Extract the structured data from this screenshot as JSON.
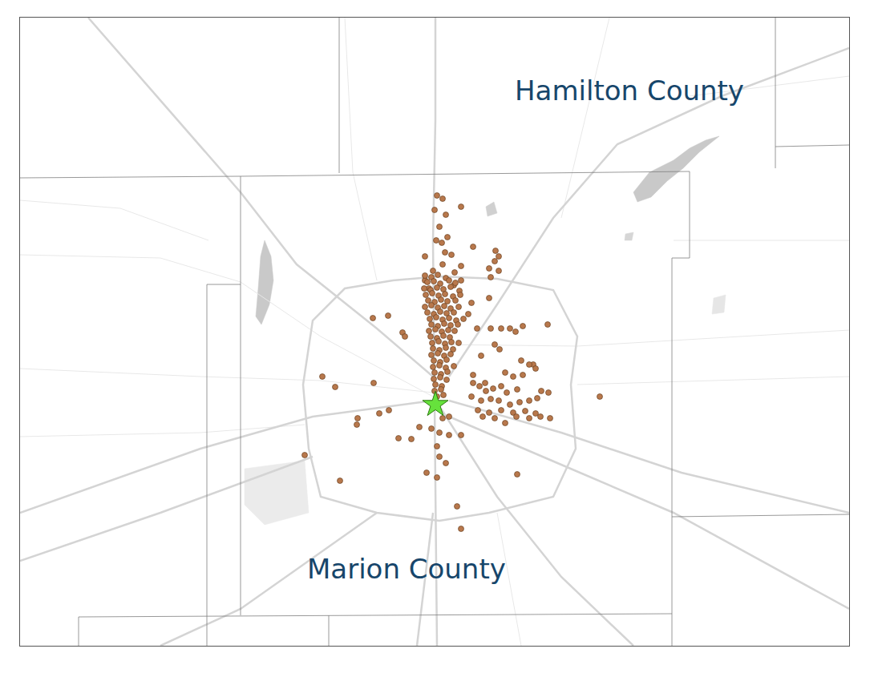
{
  "chart_data": {
    "type": "scatter",
    "xlim": [
      25,
      1059
    ],
    "ylim": [
      806,
      22
    ],
    "grid": false,
    "tick_labels": false,
    "labels": [
      {
        "text": "Hamilton County",
        "x": 785,
        "y": 113
      },
      {
        "text": "Marion County",
        "x": 507,
        "y": 710
      }
    ],
    "series": [
      {
        "color": "#b8784c",
        "marker": "circle",
        "x": [
          545,
          552,
          575,
          542,
          556,
          548,
          558,
          551,
          544,
          590,
          618,
          622,
          617,
          555,
          530,
          563,
          552,
          575,
          540,
          567,
          610,
          622,
          612,
          530,
          575,
          566,
          535,
          573,
          610,
          588,
          584,
          484,
          465,
          502,
          505,
          595,
          612,
          625,
          636,
          652,
          683,
          643,
          617,
          623,
          600,
          650,
          665,
          530,
          538,
          546,
          556,
          533,
          541,
          549,
          560,
          568,
          529,
          537,
          545,
          553,
          562,
          531,
          539,
          547,
          555,
          565,
          574,
          534,
          542,
          550,
          558,
          568,
          530,
          538,
          546,
          554,
          562,
          572,
          533,
          541,
          549,
          557,
          566,
          536,
          544,
          552,
          560,
          569,
          578,
          538,
          546,
          554,
          562,
          571,
          535,
          543,
          551,
          559,
          567,
          537,
          545,
          553,
          561,
          539,
          547,
          555,
          563,
          572,
          540,
          548,
          556,
          565,
          538,
          546,
          554,
          562,
          541,
          549,
          557,
          540,
          548,
          556,
          566,
          542,
          550,
          558,
          541,
          549,
          557,
          543,
          551,
          542,
          550,
          545,
          553,
          590,
          598,
          606,
          615,
          625,
          632,
          645,
          660,
          668,
          652,
          640,
          630,
          675,
          684,
          670,
          660,
          648,
          636,
          622,
          612,
          600,
          588,
          596,
          610,
          625,
          640,
          655,
          668,
          686,
          674,
          660,
          644,
          630,
          617,
          602,
          748,
          590,
          605,
          402,
          418,
          446,
          445,
          473,
          485,
          466,
          497,
          513,
          523,
          538,
          548,
          560,
          575,
          545,
          548,
          556,
          532,
          545,
          380,
          424,
          570,
          575,
          645,
          560,
          552
        ],
        "y": [
          244,
          248,
          258,
          262,
          268,
          283,
          296,
          303,
          300,
          308,
          313,
          320,
          326,
          315,
          320,
          318,
          330,
          332,
          338,
          340,
          335,
          338,
          346,
          350,
          350,
          356,
          360,
          363,
          372,
          378,
          392,
          394,
          397,
          415,
          420,
          410,
          410,
          410,
          410,
          407,
          405,
          414,
          430,
          436,
          444,
          450,
          455,
          344,
          346,
          343,
          347,
          352,
          351,
          354,
          350,
          353,
          360,
          362,
          359,
          361,
          358,
          368,
          366,
          369,
          367,
          370,
          368,
          375,
          377,
          374,
          376,
          375,
          383,
          381,
          384,
          382,
          385,
          383,
          390,
          392,
          389,
          391,
          390,
          398,
          396,
          399,
          397,
          400,
          398,
          405,
          407,
          404,
          406,
          405,
          413,
          411,
          414,
          412,
          413,
          420,
          422,
          419,
          421,
          428,
          426,
          429,
          427,
          428,
          435,
          437,
          434,
          436,
          443,
          441,
          444,
          442,
          450,
          452,
          449,
          458,
          456,
          459,
          457,
          465,
          467,
          464,
          473,
          471,
          474,
          480,
          482,
          488,
          486,
          495,
          493,
          478,
          482,
          488,
          485,
          482,
          490,
          486,
          455,
          460,
          468,
          470,
          465,
          488,
          490,
          497,
          500,
          502,
          505,
          500,
          498,
          500,
          495,
          512,
          515,
          512,
          515,
          513,
          516,
          522,
          520,
          522,
          520,
          528,
          522,
          520,
          495,
          468,
          478,
          470,
          483,
          522,
          530,
          516,
          512,
          478,
          547,
          548,
          533,
          535,
          540,
          543,
          543,
          557,
          570,
          578,
          590,
          596,
          568,
          600,
          632,
          660,
          592,
          520,
          522
        ]
      },
      {
        "color": "#66e23c",
        "marker": "star",
        "x": [
          543
        ],
        "y": [
          505
        ]
      }
    ]
  }
}
